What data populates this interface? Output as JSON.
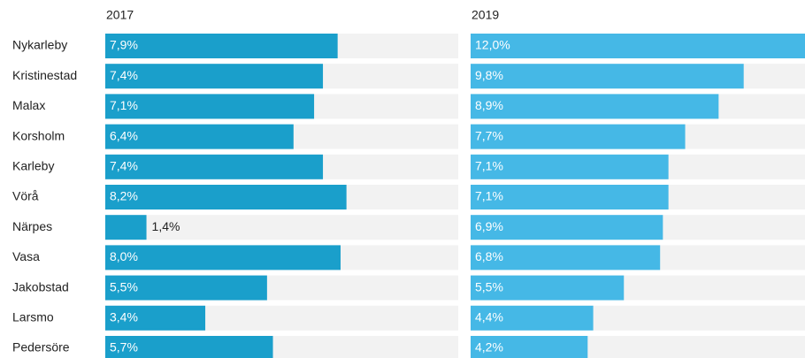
{
  "chart_data": {
    "type": "bar",
    "orientation": "horizontal",
    "categories": [
      "Nykarleby",
      "Kristinestad",
      "Malax",
      "Korsholm",
      "Karleby",
      "Vörå",
      "Närpes",
      "Vasa",
      "Jakobstad",
      "Larsmo",
      "Pedersöre"
    ],
    "series": [
      {
        "name": "2017",
        "color": "#1a9fcb",
        "values": [
          7.9,
          7.4,
          7.1,
          6.4,
          7.4,
          8.2,
          1.4,
          8.0,
          5.5,
          3.4,
          5.7
        ],
        "value_labels": [
          "7,9%",
          "7,4%",
          "7,1%",
          "6,4%",
          "7,4%",
          "8,2%",
          "1,4%",
          "8,0%",
          "5,5%",
          "3,4%",
          "5,7%"
        ]
      },
      {
        "name": "2019",
        "color": "#45b8e6",
        "values": [
          12.0,
          9.8,
          8.9,
          7.7,
          7.1,
          7.1,
          6.9,
          6.8,
          5.5,
          4.4,
          4.2
        ],
        "value_labels": [
          "12,0%",
          "9,8%",
          "8,9%",
          "7,7%",
          "7,1%",
          "7,1%",
          "6,9%",
          "6,8%",
          "5,5%",
          "4,4%",
          "4,2%"
        ]
      }
    ],
    "xlim": [
      0,
      12
    ]
  }
}
